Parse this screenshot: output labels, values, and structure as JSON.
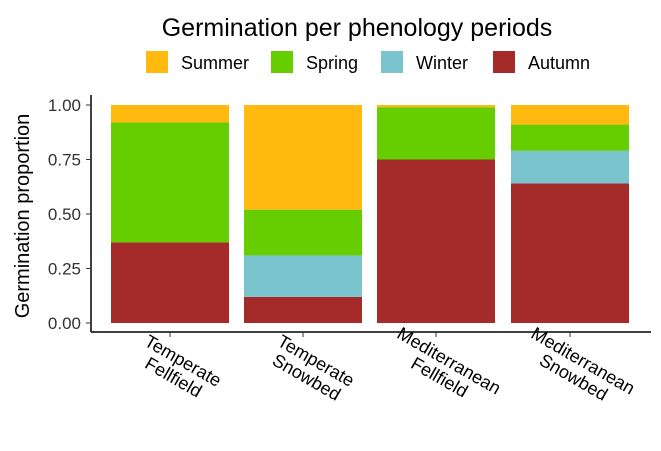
{
  "chart_data": {
    "type": "bar",
    "stacked": true,
    "title": "Germination per phenology periods",
    "xlabel": "",
    "ylabel": "Germination proportion",
    "ylim": [
      0,
      1
    ],
    "yticks": [
      "0.00",
      "0.25",
      "0.50",
      "0.75",
      "1.00"
    ],
    "ytick_values": [
      0,
      0.25,
      0.5,
      0.75,
      1.0
    ],
    "legend_position": "top",
    "grid": false,
    "categories": [
      [
        "Temperate",
        "Fellfield"
      ],
      [
        "Temperate",
        "Snowbed"
      ],
      [
        "Mediterranean",
        "Fellfield"
      ],
      [
        "Mediterranean",
        "Snowbed"
      ]
    ],
    "legend": [
      {
        "name": "Summer",
        "color": "#FFB90F"
      },
      {
        "name": "Spring",
        "color": "#66CD00"
      },
      {
        "name": "Winter",
        "color": "#7AC5CD"
      },
      {
        "name": "Autumn",
        "color": "#A52A2A"
      }
    ],
    "series": [
      {
        "name": "Autumn",
        "color": "#A52A2A",
        "values": [
          0.37,
          0.12,
          0.75,
          0.64
        ]
      },
      {
        "name": "Winter",
        "color": "#7AC5CD",
        "values": [
          0.0,
          0.19,
          0.0,
          0.15
        ]
      },
      {
        "name": "Spring",
        "color": "#66CD00",
        "values": [
          0.55,
          0.21,
          0.24,
          0.12
        ]
      },
      {
        "name": "Summer",
        "color": "#FFB90F",
        "values": [
          0.08,
          0.48,
          0.01,
          0.09
        ]
      }
    ]
  }
}
